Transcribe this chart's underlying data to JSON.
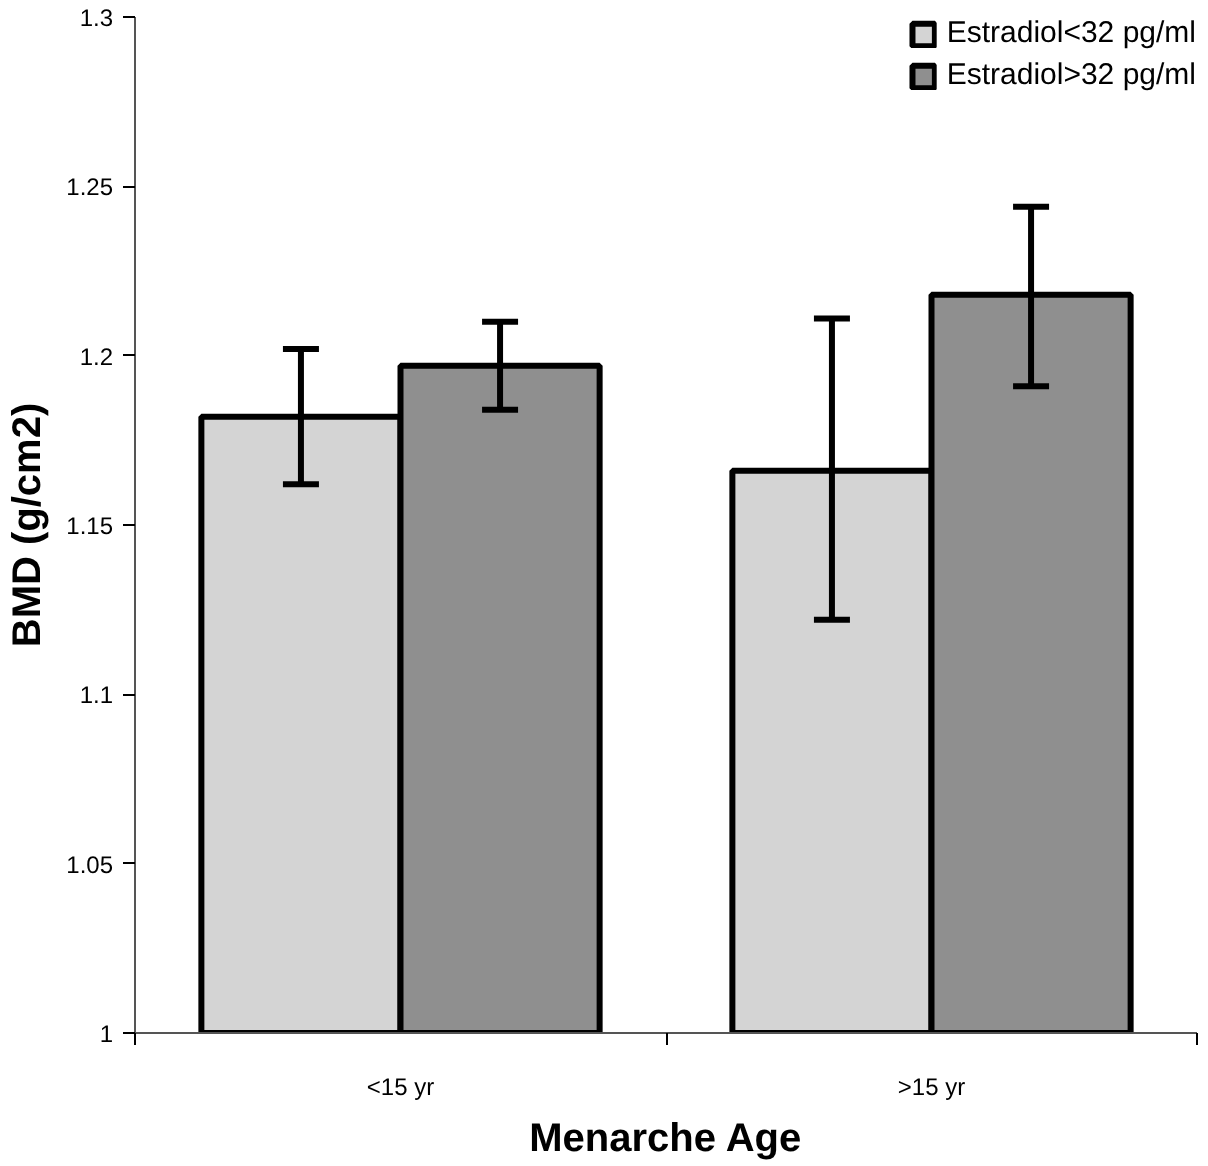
{
  "chart_data": {
    "type": "bar",
    "xlabel": "Menarche Age",
    "ylabel": "BMD (g/cm2)",
    "categories": [
      "<15 yr",
      ">15 yr"
    ],
    "series": [
      {
        "name": "Estradiol<32 pg/ml",
        "color": "#d4d4d4",
        "values": [
          1.182,
          1.166
        ],
        "errors": [
          [
            1.162,
            1.202
          ],
          [
            1.122,
            1.211
          ]
        ]
      },
      {
        "name": "Estradiol>32 pg/ml",
        "color": "#8f8f8f",
        "values": [
          1.197,
          1.218
        ],
        "errors": [
          [
            1.184,
            1.21
          ],
          [
            1.191,
            1.244
          ]
        ]
      }
    ],
    "ylim": [
      1,
      1.3
    ],
    "yticks": [
      1,
      1.05,
      1.1,
      1.15,
      1.2,
      1.25,
      1.3
    ],
    "grid": false,
    "legend": "top right"
  }
}
